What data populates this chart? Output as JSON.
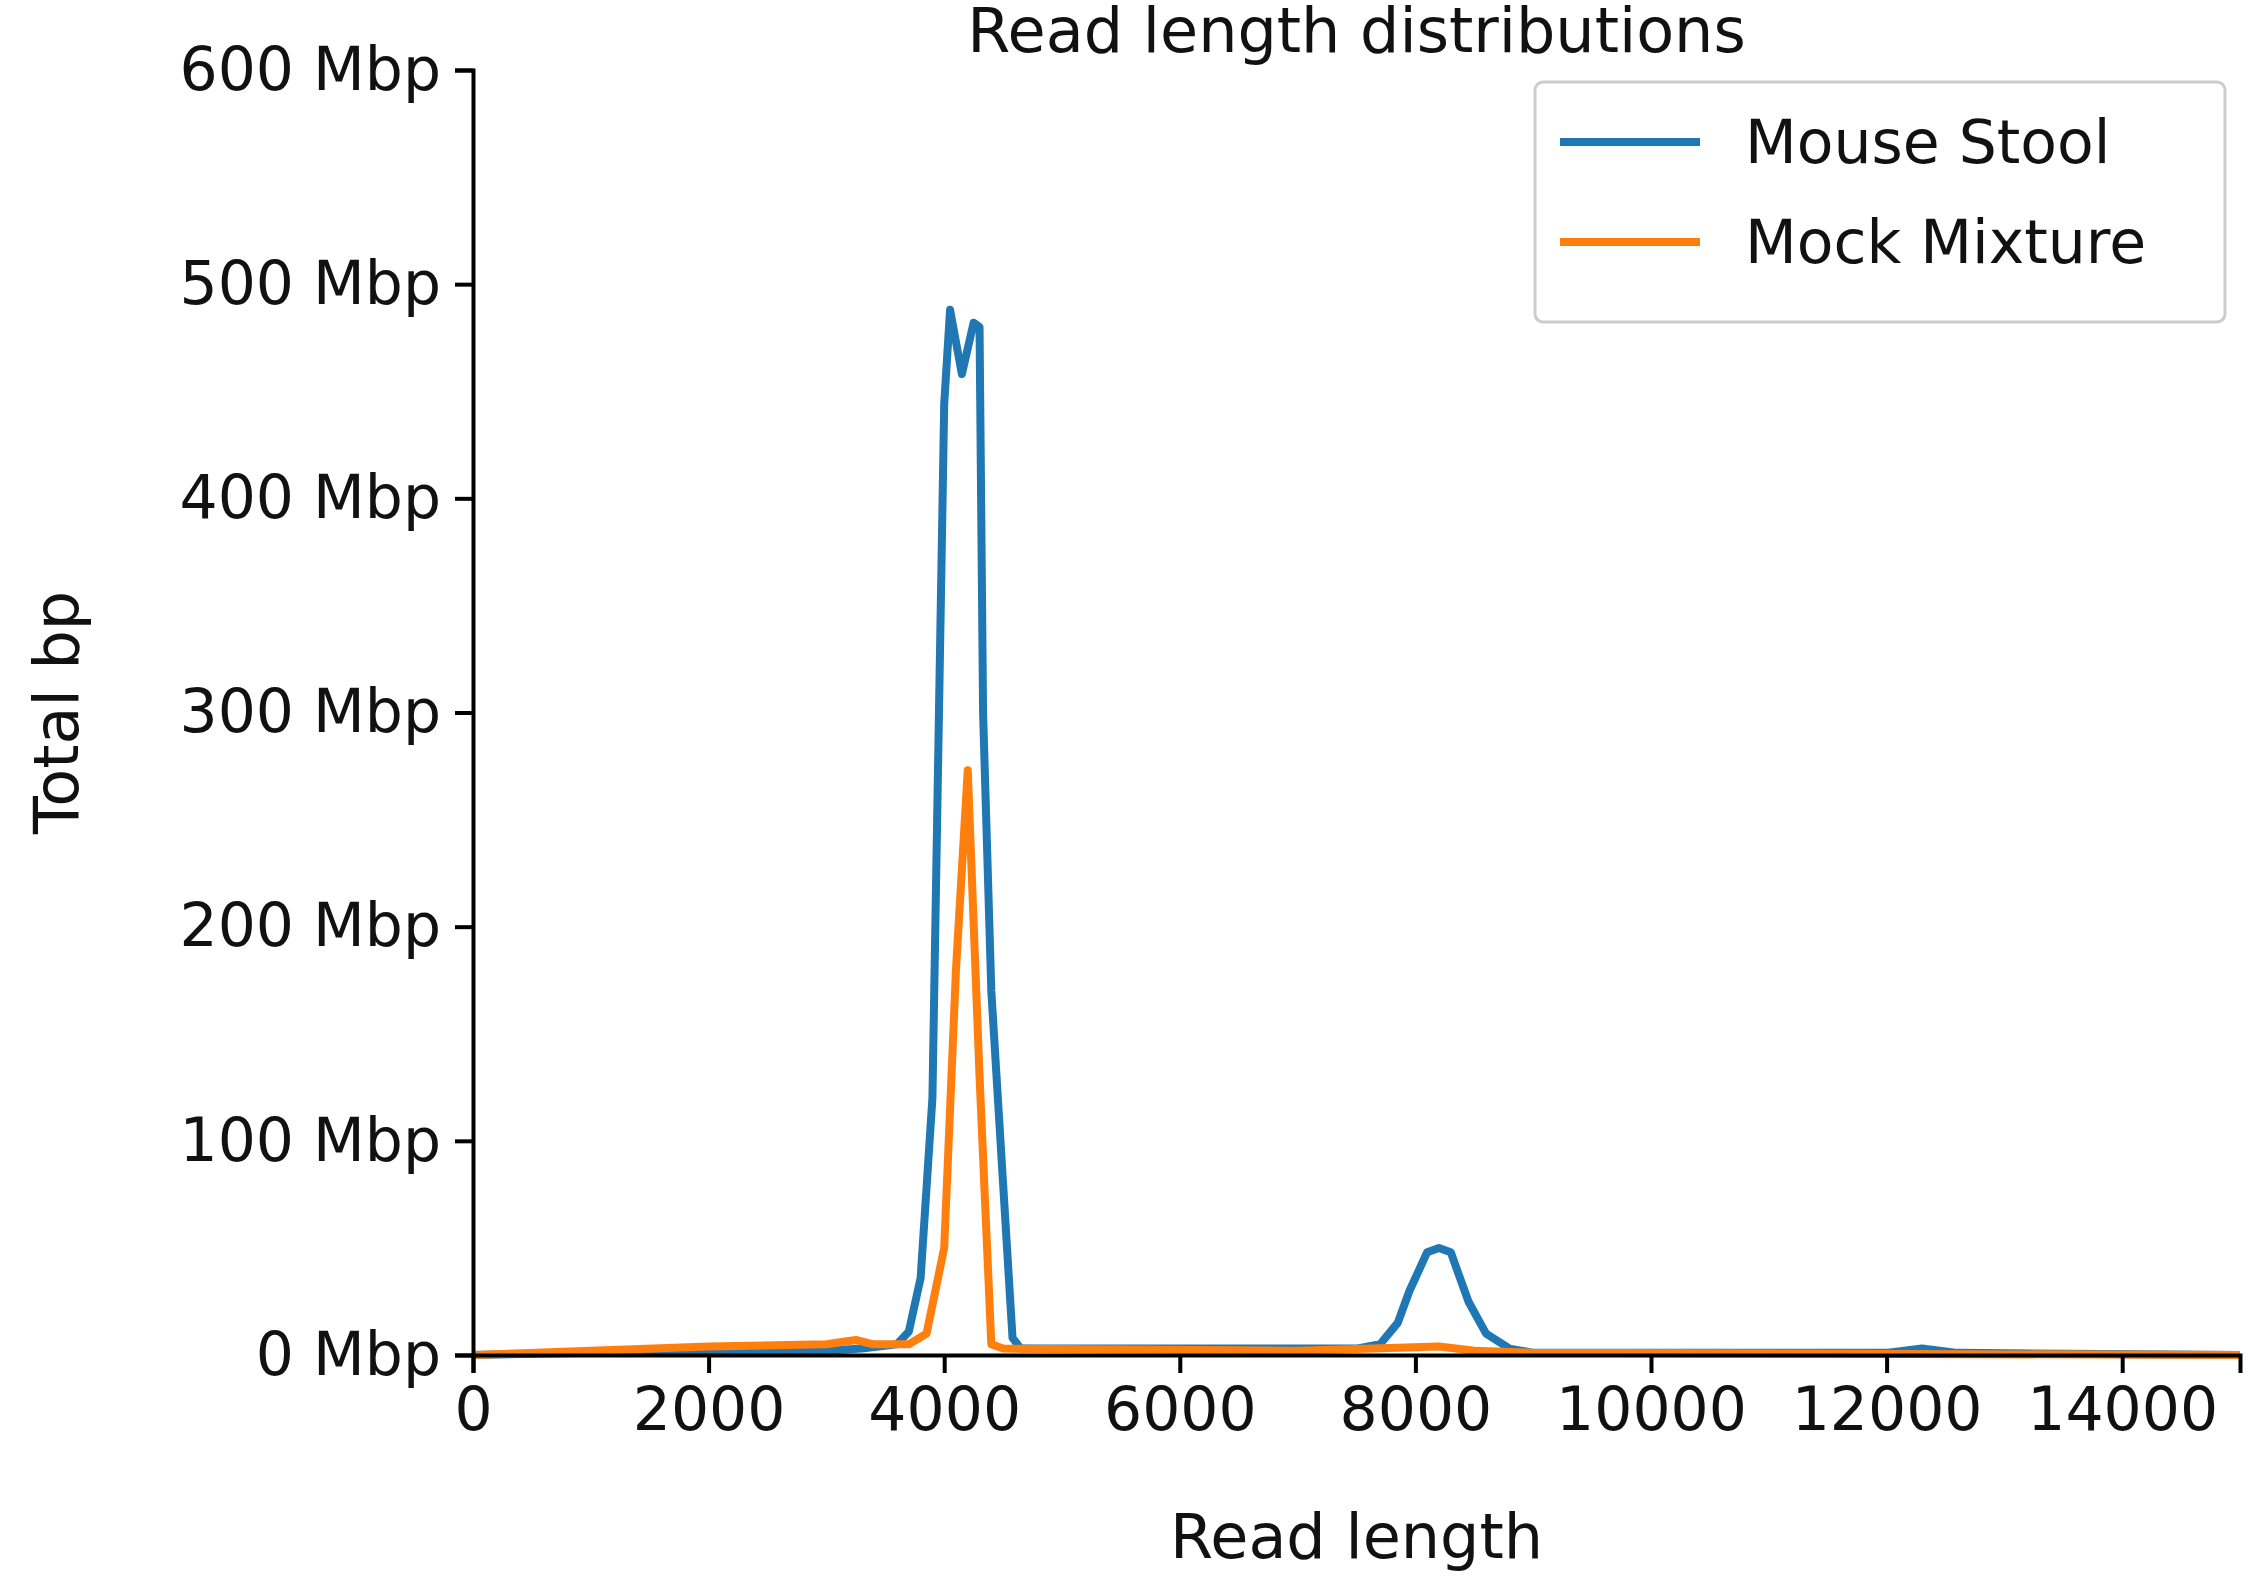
{
  "chart_data": {
    "type": "line",
    "title": "Read length distributions",
    "xlabel": "Read length",
    "ylabel": "Total bp",
    "xlim": [
      0,
      15000
    ],
    "xticks": [
      0,
      2000,
      4000,
      6000,
      8000,
      10000,
      12000,
      14000
    ],
    "ylim": [
      0,
      600
    ],
    "yticks": [
      {
        "value": 0,
        "label": "0 Mbp"
      },
      {
        "value": 100,
        "label": "100 Mbp"
      },
      {
        "value": 200,
        "label": "200 Mbp"
      },
      {
        "value": 300,
        "label": "300 Mbp"
      },
      {
        "value": 400,
        "label": "400 Mbp"
      },
      {
        "value": 500,
        "label": "500 Mbp"
      },
      {
        "value": 600,
        "label": "600 Mbp"
      }
    ],
    "grid": false,
    "legend": "top right",
    "marker": "none",
    "line_style": "solid",
    "series": [
      {
        "name": "Mouse Stool",
        "color": "#1f77b4",
        "x": [
          0,
          1000,
          2000,
          3000,
          3300,
          3600,
          3700,
          3800,
          3900,
          4000,
          4050,
          4150,
          4250,
          4300,
          4330,
          4400,
          4500,
          4580,
          4650,
          6000,
          7500,
          7700,
          7850,
          7950,
          8100,
          8200,
          8300,
          8450,
          8600,
          8800,
          9000,
          12000,
          12300,
          12600,
          15000
        ],
        "values": [
          0,
          1,
          1,
          2,
          3,
          5,
          11,
          36,
          120,
          444,
          488,
          458,
          482,
          480,
          300,
          170,
          80,
          8,
          3,
          3,
          3,
          5,
          15,
          30,
          48,
          50,
          48,
          25,
          10,
          3,
          1,
          1,
          3,
          1,
          0
        ]
      },
      {
        "name": "Mock Mixture",
        "color": "#ff7f0e",
        "x": [
          0,
          1000,
          2000,
          3000,
          3250,
          3400,
          3700,
          3850,
          4000,
          4100,
          4200,
          4300,
          4400,
          4500,
          7000,
          8200,
          8500,
          9000,
          15000
        ],
        "values": [
          0,
          2,
          4,
          5,
          7,
          5,
          5,
          10,
          50,
          180,
          273,
          130,
          5,
          3,
          2,
          4,
          2,
          1,
          0
        ]
      }
    ]
  }
}
